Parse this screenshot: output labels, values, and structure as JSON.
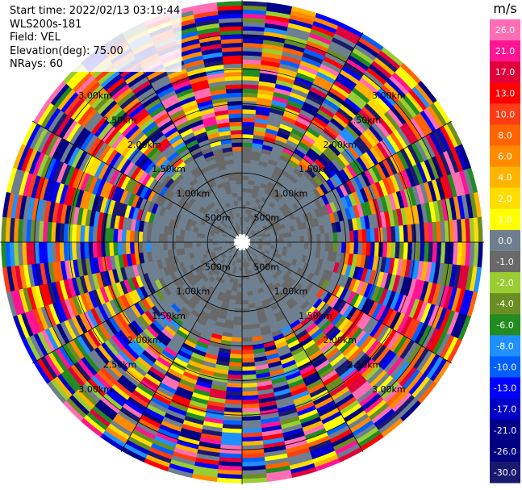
{
  "header": {
    "start_time": "Start time: 2022/02/13 03:19:44",
    "instrument": "WLS200s-181",
    "field": "Field: VEL",
    "elevation": "Elevation(deg): 75.00",
    "nrays": "NRays: 60"
  },
  "chart_data": {
    "type": "heatmap",
    "projection": "polar-ppi",
    "nrays": 60,
    "max_range_km": 3.5,
    "range_rings": [
      "500m",
      "1.00km",
      "1.50km",
      "2.00km",
      "2.50km",
      "3.00km"
    ],
    "ring_values_km": [
      0.5,
      1.0,
      1.5,
      2.0,
      2.5,
      3.0
    ],
    "grid": true,
    "colorbar": {
      "unit": "m/s",
      "tick_labels": [
        "26.0",
        "21.0",
        "17.0",
        "13.0",
        "10.0",
        "8.0",
        "6.0",
        "4.0",
        "2.0",
        "1.0",
        "0.0",
        "-1.0",
        "-2.0",
        "-4.0",
        "-6.0",
        "-8.0",
        "-10.0",
        "-13.0",
        "-17.0",
        "-21.0",
        "-26.0",
        "-30.0"
      ],
      "colors": [
        "#ff6eb4",
        "#ff1493",
        "#e0003c",
        "#ff0000",
        "#ff3c14",
        "#ff6400",
        "#ff8c00",
        "#ffb400",
        "#ffdd00",
        "#ffff00",
        "#6e7f8f",
        "#696969",
        "#9acd32",
        "#6b8e23",
        "#228b22",
        "#1e90ff",
        "#0060ff",
        "#0000ff",
        "#0000c8",
        "#00008b",
        "#000080",
        "#191970"
      ]
    }
  }
}
